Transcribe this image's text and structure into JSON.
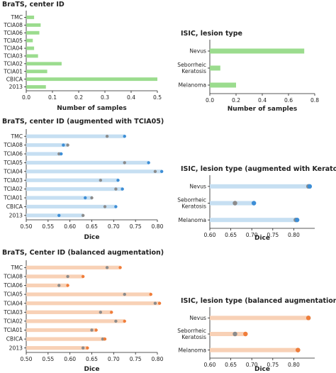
{
  "colors": {
    "green": "#9bdc8e",
    "blue_bar": "#c6dff2",
    "blue_dot": "#3d8ed6",
    "orange_bar": "#f8d1b6",
    "orange_dot": "#f07d3a",
    "grey_dot": "#8c8c8c"
  },
  "chart_data": [
    {
      "id": "brats_counts",
      "type": "bar",
      "title": "BraTS, center ID",
      "xlabel": "Number of samples",
      "categories": [
        "TMC",
        "TCIA08",
        "TCIA06",
        "TCIA05",
        "TCIA04",
        "TCIA03",
        "TCIA02",
        "TCIA01",
        "CBICA",
        "2013"
      ],
      "values": [
        0.03,
        0.055,
        0.05,
        0.025,
        0.03,
        0.045,
        0.135,
        0.08,
        0.5,
        0.075
      ],
      "xlim": [
        0,
        0.5
      ],
      "xticks": [
        0.0,
        0.1,
        0.2,
        0.3,
        0.4,
        0.5
      ],
      "xtick_labels": [
        "0.0",
        "0.1",
        "0.2",
        "0.3",
        "0.4",
        "0.5"
      ]
    },
    {
      "id": "isic_counts",
      "type": "bar",
      "title": "ISIC, lesion type",
      "xlabel": "Number of samples",
      "categories": [
        "Nevus",
        "Seborrheic\nKeratosis",
        "Melanoma"
      ],
      "values": [
        0.72,
        0.08,
        0.2
      ],
      "xlim": [
        0,
        0.8
      ],
      "xticks": [
        0.0,
        0.2,
        0.4,
        0.6,
        0.8
      ],
      "xtick_labels": [
        "0.0",
        "0.2",
        "0.4",
        "0.6",
        "0.8"
      ]
    },
    {
      "id": "brats_tcia05",
      "type": "scatter",
      "title": "BraTS, center ID (augmented with TCIA05)",
      "xlabel": "Dice",
      "categories": [
        "TMC",
        "TCIA08",
        "TCIA06",
        "TCIA05",
        "TCIA04",
        "TCIA03",
        "TCIA02",
        "TCIA01",
        "CBICA",
        "2013"
      ],
      "series": [
        {
          "role": "baseline",
          "values": [
            0.685,
            0.595,
            0.575,
            0.725,
            0.795,
            0.67,
            0.705,
            0.65,
            0.68,
            0.63
          ]
        },
        {
          "role": "augmented",
          "values": [
            0.725,
            0.585,
            0.58,
            0.78,
            0.81,
            0.71,
            0.72,
            0.635,
            0.705,
            0.575
          ]
        }
      ],
      "xlim": [
        0.5,
        0.8
      ],
      "xticks": [
        0.5,
        0.55,
        0.6,
        0.65,
        0.7,
        0.75,
        0.8
      ],
      "xtick_labels": [
        "0.50",
        "0.55",
        "0.60",
        "0.65",
        "0.70",
        "0.75",
        "0.80"
      ]
    },
    {
      "id": "isic_keratosis",
      "type": "scatter",
      "title": "ISIC, lesion type (augmented with Keratosis)",
      "xlabel": "Dice",
      "categories": [
        "Nevus",
        "Seborrheic\nKeratosis",
        "Melanoma"
      ],
      "series": [
        {
          "role": "baseline",
          "values": [
            0.835,
            0.66,
            0.805
          ]
        },
        {
          "role": "augmented",
          "values": [
            0.838,
            0.705,
            0.808
          ]
        }
      ],
      "xlim": [
        0.6,
        0.85
      ],
      "xticks": [
        0.6,
        0.65,
        0.7,
        0.75,
        0.8
      ],
      "xtick_labels": [
        "0.60",
        "0.65",
        "0.70",
        "0.75",
        "0.80"
      ]
    },
    {
      "id": "brats_balanced",
      "type": "scatter",
      "title": "BraTS, Center ID (balanced augmentation)",
      "xlabel": "Dice",
      "categories": [
        "TMC",
        "TCIA08",
        "TCIA06",
        "TCIA05",
        "TCIA04",
        "TCIA03",
        "TCIA02",
        "TCIA01",
        "CBICA",
        "2013"
      ],
      "series": [
        {
          "role": "baseline",
          "values": [
            0.685,
            0.595,
            0.575,
            0.725,
            0.795,
            0.67,
            0.705,
            0.65,
            0.675,
            0.63
          ]
        },
        {
          "role": "augmented",
          "values": [
            0.715,
            0.63,
            0.595,
            0.785,
            0.805,
            0.695,
            0.725,
            0.66,
            0.68,
            0.64
          ]
        }
      ],
      "xlim": [
        0.5,
        0.8
      ],
      "xticks": [
        0.5,
        0.55,
        0.6,
        0.65,
        0.7,
        0.75,
        0.8
      ],
      "xtick_labels": [
        "0.50",
        "0.55",
        "0.60",
        "0.65",
        "0.70",
        "0.75",
        "0.80"
      ]
    },
    {
      "id": "isic_balanced",
      "type": "scatter",
      "title": "ISIC, lesion type (balanced augmentation)",
      "xlabel": "Dice",
      "categories": [
        "Nevus",
        "Seborrheic\nKeratosis",
        "Melanoma"
      ],
      "series": [
        {
          "role": "baseline",
          "values": [
            0.835,
            0.66,
            0.81
          ]
        },
        {
          "role": "augmented",
          "values": [
            0.835,
            0.685,
            0.81
          ]
        }
      ],
      "xlim": [
        0.6,
        0.85
      ],
      "xticks": [
        0.6,
        0.65,
        0.7,
        0.75,
        0.8
      ],
      "xtick_labels": [
        "0.60",
        "0.65",
        "0.70",
        "0.75",
        "0.80"
      ]
    }
  ]
}
